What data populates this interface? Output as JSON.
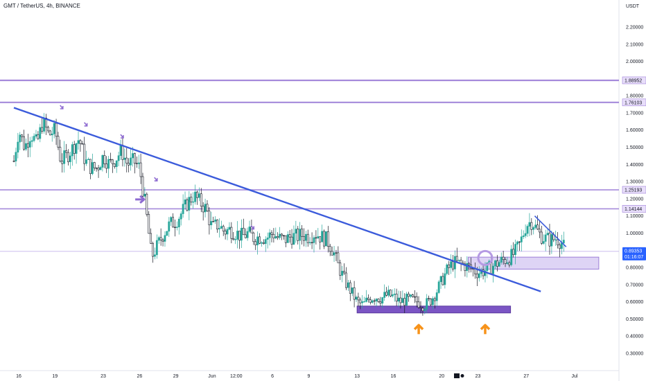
{
  "header": {
    "title": "GMT / TetherUS, 4h, BINANCE"
  },
  "colors": {
    "up": "#26a69a",
    "down": "#131722",
    "trend": "#3b5bdb",
    "level": "#9c7ed8",
    "zone_fill": "#d6c9f2",
    "zone_dark": "#7b55c4",
    "arrow_orange": "#f7931a",
    "arrow_purple": "#8e6bd1",
    "price_badge": "#2962ff"
  },
  "chart_data": {
    "type": "candlestick",
    "y_axis": {
      "unit": "USDT",
      "ticks": [
        "2.20000",
        "2.10000",
        "2.00000",
        "1.90000",
        "1.80000",
        "1.70000",
        "1.60000",
        "1.50000",
        "1.40000",
        "1.30000",
        "1.20000",
        "1.10000",
        "1.00000",
        "0.90000",
        "0.80000",
        "0.70000",
        "0.60000",
        "0.50000",
        "0.40000",
        "0.30000"
      ],
      "tick_values": [
        2.2,
        2.1,
        2.0,
        1.9,
        1.8,
        1.7,
        1.6,
        1.5,
        1.4,
        1.3,
        1.2,
        1.1,
        1.0,
        0.9,
        0.8,
        0.7,
        0.6,
        0.5,
        0.4,
        0.3
      ],
      "range": [
        0.25,
        2.28
      ]
    },
    "x_axis": {
      "ticks": [
        "16",
        "19",
        "23",
        "26",
        "29",
        "Jun",
        "12:00",
        "6",
        "9",
        "13",
        "16",
        "20",
        "23",
        "27",
        "Jul"
      ],
      "tick_day": [
        16,
        19,
        23,
        26,
        29,
        32,
        34,
        37,
        40,
        44,
        47,
        51,
        54,
        58,
        62
      ]
    },
    "day_range": [
      15.6,
      64.3
    ],
    "levels": [
      {
        "label": "1.88952",
        "value": 1.88952
      },
      {
        "label": "1.76103",
        "value": 1.76103
      },
      {
        "label": "1.25193",
        "value": 1.25193
      },
      {
        "label": "1.14144",
        "value": 1.14144
      }
    ],
    "current_price": {
      "label": "0.89353",
      "value": 0.89353,
      "countdown": "01:16:07"
    },
    "trendlines": [
      {
        "from": [
          15.6,
          1.73
        ],
        "to": [
          59.2,
          0.66
        ]
      },
      {
        "from": [
          58.7,
          1.1
        ],
        "to": [
          61.3,
          0.92
        ]
      }
    ],
    "zones": [
      {
        "from_day": 44.0,
        "to_day": 56.7,
        "bottom": 0.535,
        "top": 0.575,
        "style": "dark"
      },
      {
        "from_day": 53.2,
        "to_day": 64.0,
        "bottom": 0.79,
        "top": 0.86,
        "style": "light"
      }
    ],
    "circle": {
      "day": 54.6,
      "value": 0.855
    },
    "markers": [
      {
        "type": "arrow-down",
        "day": 19.6,
        "value": 1.72
      },
      {
        "type": "arrow-down",
        "day": 21.6,
        "value": 1.62
      },
      {
        "type": "arrow-down",
        "day": 24.6,
        "value": 1.55
      },
      {
        "type": "arrow-down",
        "day": 27.4,
        "value": 1.3
      },
      {
        "type": "arrow-down",
        "day": 35.4,
        "value": 1.02
      },
      {
        "type": "arrow-right",
        "day": 26.1,
        "value": 1.196
      },
      {
        "type": "arrow-up",
        "day": 49.1,
        "value": 0.46
      },
      {
        "type": "arrow-up",
        "day": 54.6,
        "value": 0.46
      }
    ],
    "price_path": [
      [
        15.6,
        1.42
      ],
      [
        16.0,
        1.6
      ],
      [
        16.5,
        1.5
      ],
      [
        17.0,
        1.58
      ],
      [
        17.5,
        1.52
      ],
      [
        18.0,
        1.65
      ],
      [
        18.5,
        1.57
      ],
      [
        19.0,
        1.6
      ],
      [
        19.5,
        1.42
      ],
      [
        20.0,
        1.45
      ],
      [
        20.5,
        1.5
      ],
      [
        21.0,
        1.55
      ],
      [
        21.5,
        1.42
      ],
      [
        22.0,
        1.38
      ],
      [
        22.5,
        1.38
      ],
      [
        23.0,
        1.45
      ],
      [
        23.5,
        1.4
      ],
      [
        24.0,
        1.43
      ],
      [
        24.5,
        1.48
      ],
      [
        25.0,
        1.4
      ],
      [
        25.5,
        1.42
      ],
      [
        26.0,
        1.38
      ],
      [
        26.5,
        1.15
      ],
      [
        27.0,
        0.86
      ],
      [
        27.5,
        0.93
      ],
      [
        28.0,
        1.0
      ],
      [
        28.5,
        1.05
      ],
      [
        29.0,
        1.07
      ],
      [
        29.5,
        1.12
      ],
      [
        30.0,
        1.18
      ],
      [
        30.5,
        1.22
      ],
      [
        31.0,
        1.18
      ],
      [
        31.5,
        1.14
      ],
      [
        32.0,
        1.03
      ],
      [
        32.5,
        1.05
      ],
      [
        33.0,
        1.01
      ],
      [
        33.5,
        1.02
      ],
      [
        34.0,
        1.0
      ],
      [
        34.5,
        0.98
      ],
      [
        35.0,
        1.0
      ],
      [
        35.5,
        0.97
      ],
      [
        36.0,
        0.98
      ],
      [
        36.5,
        0.97
      ],
      [
        37.0,
        1.0
      ],
      [
        37.5,
        0.97
      ],
      [
        38.0,
        0.96
      ],
      [
        38.5,
        0.98
      ],
      [
        39.0,
        0.98
      ],
      [
        39.5,
        0.99
      ],
      [
        40.0,
        0.98
      ],
      [
        40.5,
        1.0
      ],
      [
        41.0,
        0.98
      ],
      [
        41.5,
        0.96
      ],
      [
        42.0,
        0.9
      ],
      [
        42.5,
        0.8
      ],
      [
        43.0,
        0.72
      ],
      [
        43.5,
        0.66
      ],
      [
        44.0,
        0.6
      ],
      [
        44.5,
        0.58
      ],
      [
        45.0,
        0.62
      ],
      [
        45.5,
        0.63
      ],
      [
        46.0,
        0.62
      ],
      [
        46.5,
        0.64
      ],
      [
        47.0,
        0.63
      ],
      [
        47.5,
        0.6
      ],
      [
        48.0,
        0.61
      ],
      [
        48.5,
        0.61
      ],
      [
        49.0,
        0.6
      ],
      [
        49.5,
        0.58
      ],
      [
        50.0,
        0.6
      ],
      [
        50.5,
        0.65
      ],
      [
        51.0,
        0.72
      ],
      [
        51.5,
        0.79
      ],
      [
        52.0,
        0.83
      ],
      [
        52.5,
        0.82
      ],
      [
        53.0,
        0.81
      ],
      [
        53.5,
        0.79
      ],
      [
        54.0,
        0.77
      ],
      [
        54.5,
        0.78
      ],
      [
        55.0,
        0.8
      ],
      [
        55.5,
        0.82
      ],
      [
        56.0,
        0.84
      ],
      [
        56.5,
        0.85
      ],
      [
        57.0,
        0.88
      ],
      [
        57.5,
        0.94
      ],
      [
        58.0,
        1.05
      ],
      [
        58.5,
        1.07
      ],
      [
        59.0,
        1.0
      ],
      [
        59.5,
        0.97
      ],
      [
        60.0,
        0.96
      ],
      [
        60.5,
        0.97
      ],
      [
        61.0,
        0.94
      ],
      [
        61.2,
        0.9
      ]
    ]
  }
}
